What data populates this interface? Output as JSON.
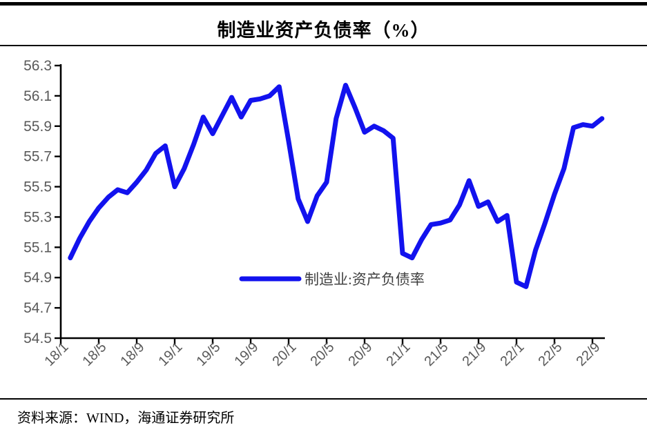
{
  "page": {
    "title": "制造业资产负债率（%）",
    "source": "资料来源：WIND，海通证券研究所"
  },
  "chart_data": {
    "type": "line",
    "title": "制造业资产负债率（%）",
    "xlabel": "",
    "ylabel": "",
    "ylim": [
      54.5,
      56.3
    ],
    "grid": false,
    "legend_position": "inside-bottom-center",
    "y_ticks": [
      54.5,
      54.7,
      54.9,
      55.1,
      55.3,
      55.5,
      55.7,
      55.9,
      56.1,
      56.3
    ],
    "x_tick_labels": [
      "18/1",
      "18/5",
      "18/9",
      "19/1",
      "19/5",
      "19/9",
      "20/1",
      "20/5",
      "20/9",
      "21/1",
      "21/5",
      "21/9",
      "22/1",
      "22/5",
      "22/9"
    ],
    "x": [
      "18/2",
      "18/3",
      "18/4",
      "18/5",
      "18/6",
      "18/7",
      "18/8",
      "18/9",
      "18/10",
      "18/11",
      "18/12",
      "19/1",
      "19/2",
      "19/3",
      "19/4",
      "19/5",
      "19/6",
      "19/7",
      "19/8",
      "19/9",
      "19/10",
      "19/11",
      "19/12",
      "20/1",
      "20/2",
      "20/3",
      "20/4",
      "20/5",
      "20/6",
      "20/7",
      "20/8",
      "20/9",
      "20/10",
      "20/11",
      "20/12",
      "21/1",
      "21/2",
      "21/3",
      "21/4",
      "21/5",
      "21/6",
      "21/7",
      "21/8",
      "21/9",
      "21/10",
      "21/11",
      "21/12",
      "22/1",
      "22/2",
      "22/3",
      "22/4",
      "22/5",
      "22/6",
      "22/7",
      "22/8",
      "22/9",
      "22/10"
    ],
    "series": [
      {
        "name": "制造业:资产负债率",
        "values": [
          55.03,
          55.16,
          55.27,
          55.36,
          55.43,
          55.48,
          55.46,
          55.53,
          55.61,
          55.72,
          55.77,
          55.5,
          55.62,
          55.78,
          55.96,
          55.85,
          55.97,
          56.09,
          55.96,
          56.07,
          56.08,
          56.1,
          56.16,
          55.8,
          55.42,
          55.27,
          55.44,
          55.53,
          55.95,
          56.17,
          56.02,
          55.86,
          55.9,
          55.87,
          55.82,
          55.06,
          55.03,
          55.15,
          55.25,
          55.26,
          55.28,
          55.38,
          55.54,
          55.37,
          55.4,
          55.27,
          55.31,
          54.87,
          54.84,
          55.08,
          55.26,
          55.45,
          55.62,
          55.89,
          55.91,
          55.9,
          55.95
        ]
      }
    ],
    "colors": {
      "line": "#1212ee",
      "axis": "#000000",
      "tick_label": "#595959",
      "legend_text": "#404040"
    }
  }
}
